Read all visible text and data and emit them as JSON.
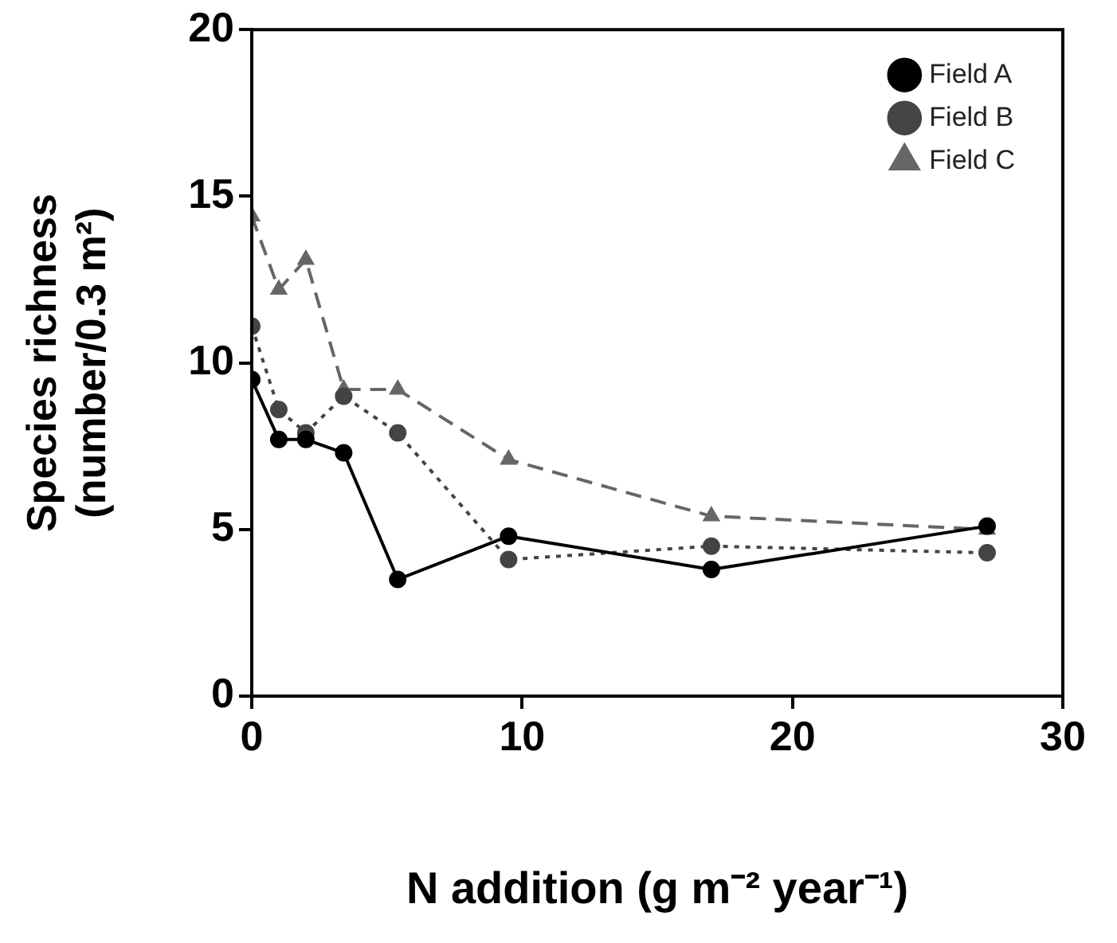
{
  "chart_data": {
    "type": "line",
    "xlabel": "N addition (g m⁻² year⁻¹)",
    "ylabel": "Species richness\n(number/0.3 m²)",
    "x": [
      0,
      1,
      2,
      3.4,
      5.4,
      9.5,
      17,
      27.2
    ],
    "series": [
      {
        "name": "Field A",
        "color": "#000000",
        "marker": "circle",
        "line_style": "solid",
        "values": [
          9.5,
          7.7,
          7.7,
          7.3,
          3.5,
          4.8,
          3.8,
          5.1
        ]
      },
      {
        "name": "Field B",
        "color": "#444444",
        "marker": "circle",
        "line_style": "dotted",
        "values": [
          11.1,
          8.6,
          7.9,
          9.0,
          7.9,
          4.1,
          4.5,
          4.3
        ]
      },
      {
        "name": "Field C",
        "color": "#666666",
        "marker": "triangle",
        "line_style": "dashed",
        "values": [
          14.4,
          12.2,
          13.1,
          9.2,
          9.2,
          7.1,
          5.4,
          5.0
        ]
      }
    ],
    "xlim": [
      0,
      30
    ],
    "xticks": [
      0,
      10,
      20,
      30
    ],
    "ylim": [
      0,
      20
    ],
    "yticks": [
      0,
      5,
      10,
      15,
      20
    ],
    "grid": false,
    "legend": "top right"
  }
}
